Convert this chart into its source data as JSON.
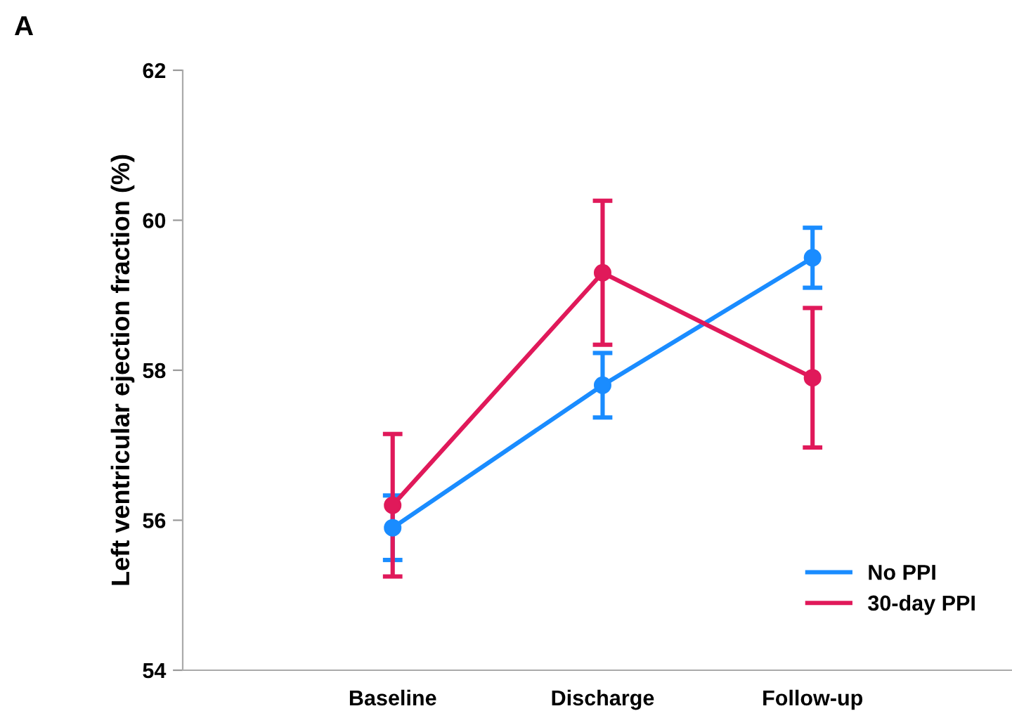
{
  "chart_data": {
    "type": "line",
    "title": "A",
    "ylabel": "Left ventricular ejection fraction (%)",
    "categories": [
      "Baseline",
      "Discharge",
      "Follow-up"
    ],
    "series": [
      {
        "name": "No PPI",
        "color": "#1a8cff",
        "values": [
          55.9,
          57.8,
          59.5
        ],
        "errors": [
          0.43,
          0.43,
          0.4
        ]
      },
      {
        "name": "30-day PPI",
        "color": "#e0195a",
        "values": [
          56.2,
          59.3,
          57.9
        ],
        "errors": [
          0.95,
          0.96,
          0.93
        ]
      }
    ],
    "ylim": [
      54,
      62
    ],
    "yticks": [
      54,
      56,
      58,
      60,
      62
    ],
    "grid": false,
    "legend": "bottom right",
    "marker": "circle",
    "line_style": "solid"
  }
}
